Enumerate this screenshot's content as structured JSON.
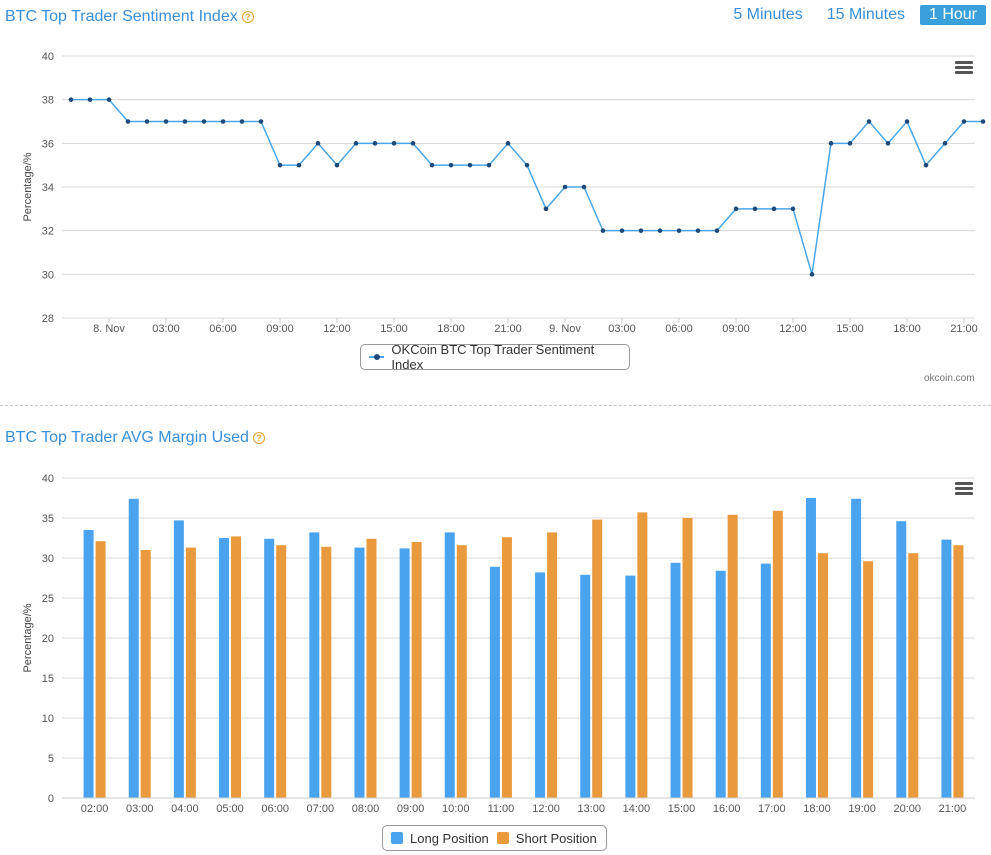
{
  "sentiment_section": {
    "title": "BTC Top Trader Sentiment Index",
    "help_icon": "question-circle-icon",
    "tabs": [
      {
        "label": "5 Minutes",
        "active": false
      },
      {
        "label": "15 Minutes",
        "active": false
      },
      {
        "label": "1 Hour",
        "active": true
      }
    ],
    "credit": "okcoin.com",
    "menu_icon": "hamburger-menu-icon"
  },
  "margin_section": {
    "title": "BTC Top Trader AVG Margin Used",
    "help_icon": "question-circle-icon",
    "menu_icon": "hamburger-menu-icon"
  },
  "colors": {
    "title_blue": "#3a8fd6",
    "line": "#4aa6e8",
    "marker": "#1d4a7a",
    "long": "#4aa3ee",
    "short": "#e89a3c",
    "help": "#e8a22f",
    "active_tab": "#3aa0dc"
  },
  "chart_data": [
    {
      "type": "line",
      "ylabel": "Percentage/%",
      "ylim": [
        28,
        40
      ],
      "yticks": [
        28,
        30,
        32,
        34,
        36,
        38,
        40
      ],
      "x_tick_labels": [
        "8. Nov",
        "03:00",
        "06:00",
        "09:00",
        "12:00",
        "15:00",
        "18:00",
        "21:00",
        "9. Nov",
        "03:00",
        "06:00",
        "09:00",
        "12:00",
        "15:00",
        "18:00",
        "21:00"
      ],
      "x_tick_start_index": 2,
      "x_tick_step": 3,
      "series": [
        {
          "name": "OKCoin BTC Top Trader Sentiment Index",
          "values": [
            38,
            38,
            38,
            37,
            37,
            37,
            37,
            37,
            37,
            37,
            37,
            35,
            35,
            36,
            35,
            36,
            36,
            36,
            36,
            35,
            35,
            35,
            35,
            36,
            35,
            33,
            34,
            34,
            32,
            32,
            32,
            32,
            32,
            32,
            32,
            33,
            33,
            33,
            33,
            30,
            36,
            36,
            37,
            36,
            37,
            35,
            36,
            37,
            37
          ]
        }
      ],
      "legend": "bottom-center",
      "grid": true
    },
    {
      "type": "bar",
      "ylabel": "Percentage/%",
      "ylim": [
        0,
        40
      ],
      "yticks": [
        0,
        5,
        10,
        15,
        20,
        25,
        30,
        35,
        40
      ],
      "categories": [
        "02:00",
        "03:00",
        "04:00",
        "05:00",
        "06:00",
        "07:00",
        "08:00",
        "09:00",
        "10:00",
        "11:00",
        "12:00",
        "13:00",
        "14:00",
        "15:00",
        "16:00",
        "17:00",
        "18:00",
        "19:00",
        "20:00",
        "21:00"
      ],
      "series": [
        {
          "name": "Long Position",
          "values": [
            33.5,
            37.4,
            34.7,
            32.5,
            32.4,
            33.2,
            31.3,
            31.2,
            33.2,
            28.9,
            28.2,
            27.9,
            27.8,
            29.4,
            28.4,
            29.3,
            37.5,
            37.4,
            34.6,
            32.3
          ]
        },
        {
          "name": "Short Position",
          "values": [
            32.1,
            31.0,
            31.3,
            32.7,
            31.6,
            31.4,
            32.4,
            32.0,
            31.6,
            32.6,
            33.2,
            34.8,
            35.7,
            35.0,
            35.4,
            35.9,
            30.6,
            29.6,
            30.6,
            31.6
          ]
        }
      ],
      "legend": "bottom-center",
      "grid": true
    }
  ]
}
